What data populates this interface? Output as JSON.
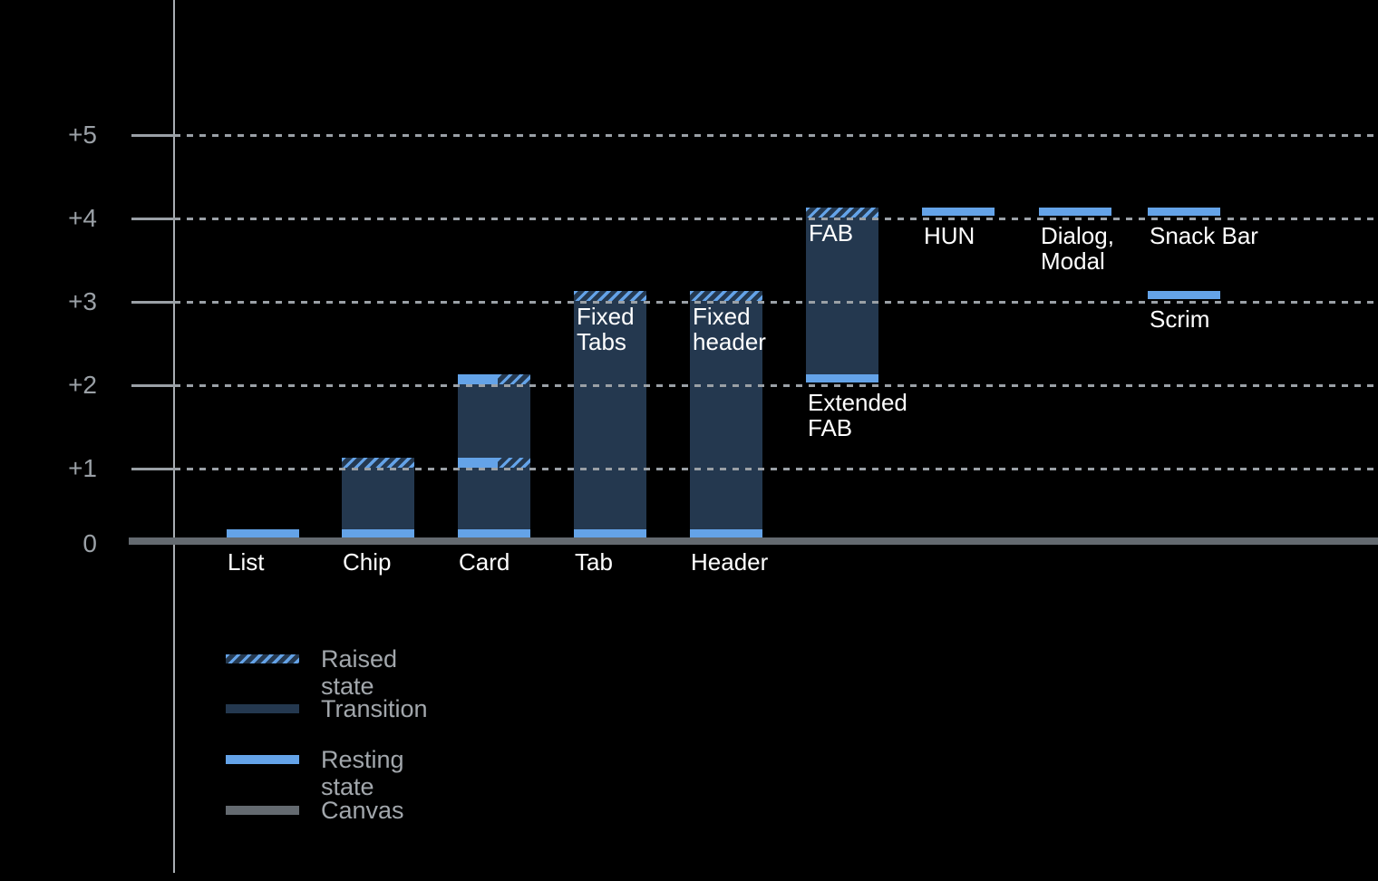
{
  "colors": {
    "background": "#000000",
    "resting": "#64A3E8",
    "transition": "#24384F",
    "canvas": "#646A70",
    "axis": "#A9AEB3",
    "grid": "#9AA0A6",
    "axis_label": "#9AA0A6",
    "legend_label": "#A2A7AC",
    "component_label": "#FFFFFF"
  },
  "chart_data": {
    "type": "bar",
    "ylim": [
      0,
      5
    ],
    "y_tick_labels": [
      "+5",
      "+4",
      "+3",
      "+2",
      "+1",
      "0"
    ],
    "grid": "dotted horizontal lines at +1 through +5, solid canvas baseline at 0",
    "legend_position": "bottom-left",
    "bars": [
      {
        "id": "list",
        "baseline_label": "List",
        "segments": [
          {
            "kind": "resting",
            "at": 0
          }
        ]
      },
      {
        "id": "chip",
        "baseline_label": "Chip",
        "segments": [
          {
            "kind": "transition",
            "from": 0,
            "to": 1
          },
          {
            "kind": "resting",
            "at": 0
          },
          {
            "kind": "raised",
            "at": 1
          }
        ]
      },
      {
        "id": "card",
        "baseline_label": "Card",
        "segments": [
          {
            "kind": "transition",
            "from": 0,
            "to": 1
          },
          {
            "kind": "transition",
            "from": 1,
            "to": 2
          },
          {
            "kind": "resting",
            "at": 0
          },
          {
            "kind": "resting-raised",
            "at": 1
          },
          {
            "kind": "resting-raised",
            "at": 2
          }
        ]
      },
      {
        "id": "tab",
        "baseline_label": "Tab",
        "inner_lines": [
          "Fixed",
          "Tabs"
        ],
        "inner_at": 3,
        "segments": [
          {
            "kind": "transition",
            "from": 0,
            "to": 3
          },
          {
            "kind": "resting",
            "at": 0
          },
          {
            "kind": "raised",
            "at": 3
          }
        ]
      },
      {
        "id": "header",
        "baseline_label": "Header",
        "inner_lines": [
          "Fixed",
          "header"
        ],
        "inner_at": 3,
        "segments": [
          {
            "kind": "transition",
            "from": 0,
            "to": 3
          },
          {
            "kind": "resting",
            "at": 0
          },
          {
            "kind": "raised",
            "at": 3
          }
        ]
      },
      {
        "id": "fab",
        "inner_lines": [
          "FAB"
        ],
        "inner_at": 4,
        "under_lines": [
          "Extended",
          "FAB"
        ],
        "segments": [
          {
            "kind": "transition",
            "from": 2,
            "to": 4
          },
          {
            "kind": "resting",
            "at": 2
          },
          {
            "kind": "raised",
            "at": 4
          }
        ]
      },
      {
        "id": "hun",
        "under_lines": [
          "HUN"
        ],
        "segments": [
          {
            "kind": "resting",
            "at": 4
          }
        ]
      },
      {
        "id": "dialog-modal",
        "under_lines": [
          "Dialog,",
          "Modal"
        ],
        "segments": [
          {
            "kind": "resting",
            "at": 4
          }
        ]
      },
      {
        "id": "snack-bar",
        "under_lines": [
          "Snack Bar"
        ],
        "segments": [
          {
            "kind": "resting",
            "at": 4
          }
        ]
      },
      {
        "id": "scrim",
        "under_lines": [
          "Scrim"
        ],
        "segments": [
          {
            "kind": "resting",
            "at": 3
          }
        ]
      }
    ],
    "legend": [
      {
        "id": "raised",
        "label": "Raised state"
      },
      {
        "id": "transition",
        "label": "Transition"
      },
      {
        "id": "resting",
        "label": "Resting state"
      },
      {
        "id": "canvas",
        "label": "Canvas"
      }
    ]
  }
}
